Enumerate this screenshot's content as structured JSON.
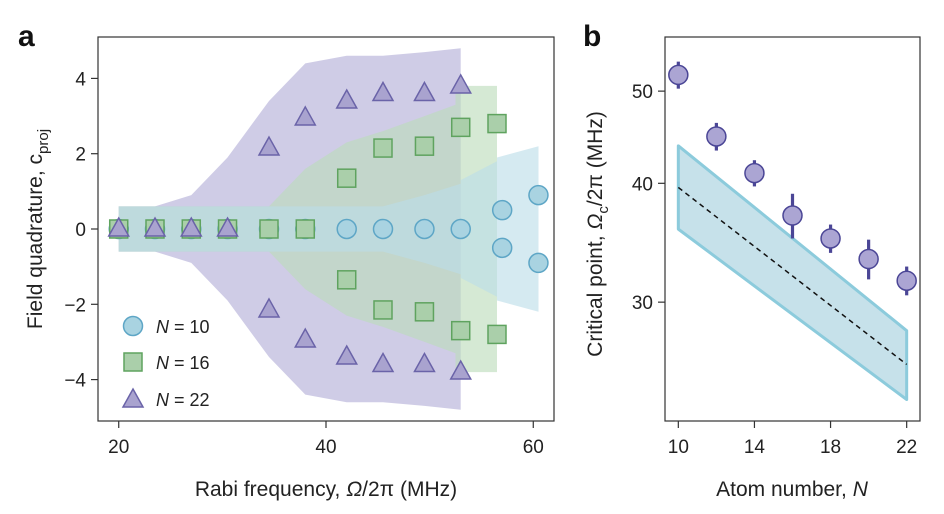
{
  "chart_data": [
    {
      "type": "scatter",
      "panel_label": "a",
      "xlabel_prefix": "Rabi frequency, ",
      "xlabel_symbol": "Ω",
      "xlabel_suffix": "/2π (MHz)",
      "ylabel_prefix": "Field quadrature, c",
      "ylabel_sub": "proj",
      "xlim": [
        18,
        62
      ],
      "ylim": [
        -5.1,
        5.1
      ],
      "xticks": [
        20,
        40,
        60
      ],
      "yticks": [
        -4,
        -2,
        0,
        2,
        4
      ],
      "legend_position": "bottom-left",
      "series": [
        {
          "name": "N = 10",
          "n_label": "N",
          "n_value": "= 10",
          "marker": "circle",
          "fill": "#a9d3e1",
          "stroke": "#5ea6c6",
          "band": "#bcdde8",
          "points": [
            [
              20,
              0
            ],
            [
              23.5,
              0
            ],
            [
              27,
              0
            ],
            [
              30.5,
              0
            ],
            [
              34.5,
              0
            ],
            [
              38,
              0
            ],
            [
              42,
              0
            ],
            [
              45.5,
              0
            ],
            [
              49.5,
              0
            ],
            [
              53,
              0
            ],
            [
              57,
              0.5
            ],
            [
              57,
              -0.5
            ],
            [
              60.5,
              0.9
            ],
            [
              60.5,
              -0.9
            ]
          ],
          "band_x": [
            20,
            23.5,
            27,
            30.5,
            34.5,
            38,
            42,
            45.5,
            49.5,
            53,
            53,
            56.5,
            56.5,
            60.5
          ],
          "band_upper": [
            0.6,
            0.6,
            0.6,
            0.6,
            0.6,
            0.6,
            0.6,
            0.6,
            0.9,
            1.2,
            1.3,
            1.8,
            1.9,
            2.2
          ],
          "band_lower": [
            -0.6,
            -0.6,
            -0.6,
            -0.6,
            -0.6,
            -0.6,
            -0.6,
            -0.6,
            -0.9,
            -1.2,
            -1.3,
            -1.8,
            -1.9,
            -2.2
          ]
        },
        {
          "name": "N = 16",
          "n_label": "N",
          "n_value": "= 16",
          "marker": "square",
          "fill": "#aacfaa",
          "stroke": "#5fa35f",
          "band": "#bcdcb9",
          "points": [
            [
              20,
              0
            ],
            [
              23.5,
              0
            ],
            [
              27,
              0
            ],
            [
              30.5,
              0
            ],
            [
              34.5,
              0
            ],
            [
              38,
              0
            ],
            [
              42,
              1.35
            ],
            [
              42,
              -1.35
            ],
            [
              45.5,
              2.15
            ],
            [
              45.5,
              -2.15
            ],
            [
              49.5,
              2.2
            ],
            [
              49.5,
              -2.2
            ],
            [
              53,
              2.7
            ],
            [
              53,
              -2.7
            ],
            [
              56.5,
              2.8
            ],
            [
              56.5,
              -2.8
            ]
          ],
          "band_x": [
            20,
            23.5,
            27,
            30.5,
            34.5,
            38,
            42,
            45.5,
            49.5,
            52.5,
            52.5,
            56.5
          ],
          "band_upper": [
            0.6,
            0.6,
            0.6,
            0.6,
            0.6,
            1.6,
            2.3,
            2.6,
            3.0,
            3.3,
            3.8,
            3.8
          ],
          "band_lower": [
            -0.6,
            -0.6,
            -0.6,
            -0.6,
            -0.6,
            -1.6,
            -2.3,
            -2.6,
            -3.0,
            -3.3,
            -3.8,
            -3.8
          ]
        },
        {
          "name": "N = 22",
          "n_label": "N",
          "n_value": "= 22",
          "marker": "triangle",
          "fill": "#a9a3cf",
          "stroke": "#6a63a8",
          "band": "#b2add6",
          "points": [
            [
              20,
              0
            ],
            [
              23.5,
              0
            ],
            [
              27,
              0
            ],
            [
              30.5,
              0
            ],
            [
              34.5,
              2.15
            ],
            [
              34.5,
              -2.15
            ],
            [
              38,
              2.95
            ],
            [
              38,
              -2.95
            ],
            [
              42,
              3.4
            ],
            [
              42,
              -3.4
            ],
            [
              45.5,
              3.6
            ],
            [
              45.5,
              -3.6
            ],
            [
              49.5,
              3.6
            ],
            [
              49.5,
              -3.6
            ],
            [
              53,
              3.8
            ],
            [
              53,
              -3.8
            ]
          ],
          "band_x": [
            20,
            23.5,
            27,
            30.5,
            34.5,
            38,
            42,
            45.5,
            49.5,
            53
          ],
          "band_upper": [
            0.6,
            0.6,
            0.9,
            1.9,
            3.4,
            4.4,
            4.6,
            4.6,
            4.7,
            4.8
          ],
          "band_lower": [
            -0.6,
            -0.6,
            -0.9,
            -1.9,
            -3.4,
            -4.4,
            -4.6,
            -4.6,
            -4.7,
            -4.8
          ]
        }
      ]
    },
    {
      "type": "scatter",
      "panel_label": "b",
      "xlabel_prefix": "Atom number, ",
      "xlabel_symbol": "N",
      "ylabel_prefix": "Critical point, ",
      "ylabel_symbol": "Ω",
      "ylabel_sub": "c",
      "ylabel_suffix": "/2π (MHz)",
      "yscale": "log",
      "xlim": [
        9.3,
        22.7
      ],
      "ylim": [
        22.5,
        57
      ],
      "xticks": [
        10,
        14,
        18,
        22
      ],
      "yticks": [
        30,
        40,
        50
      ],
      "marker_fill": "#aba5d3",
      "marker_stroke": "#4b4696",
      "band_fill": "#c6e1ea",
      "band_stroke": "#8ccbdc",
      "measured": {
        "x": [
          10,
          12,
          14,
          16,
          18,
          20,
          22
        ],
        "y": [
          52,
          44.8,
          41,
          37,
          35,
          33.3,
          31.6
        ],
        "err_low": [
          1.7,
          1.5,
          1.3,
          2.0,
          1.2,
          1.6,
          1.1
        ],
        "err_high": [
          1.7,
          1.5,
          1.3,
          2.0,
          1.2,
          1.6,
          1.1
        ]
      },
      "theory": {
        "x": [
          10,
          22
        ],
        "y": [
          39.6,
          25.8
        ],
        "band_upper": [
          43.8,
          28.0
        ],
        "band_lower": [
          35.8,
          23.7
        ]
      }
    }
  ]
}
